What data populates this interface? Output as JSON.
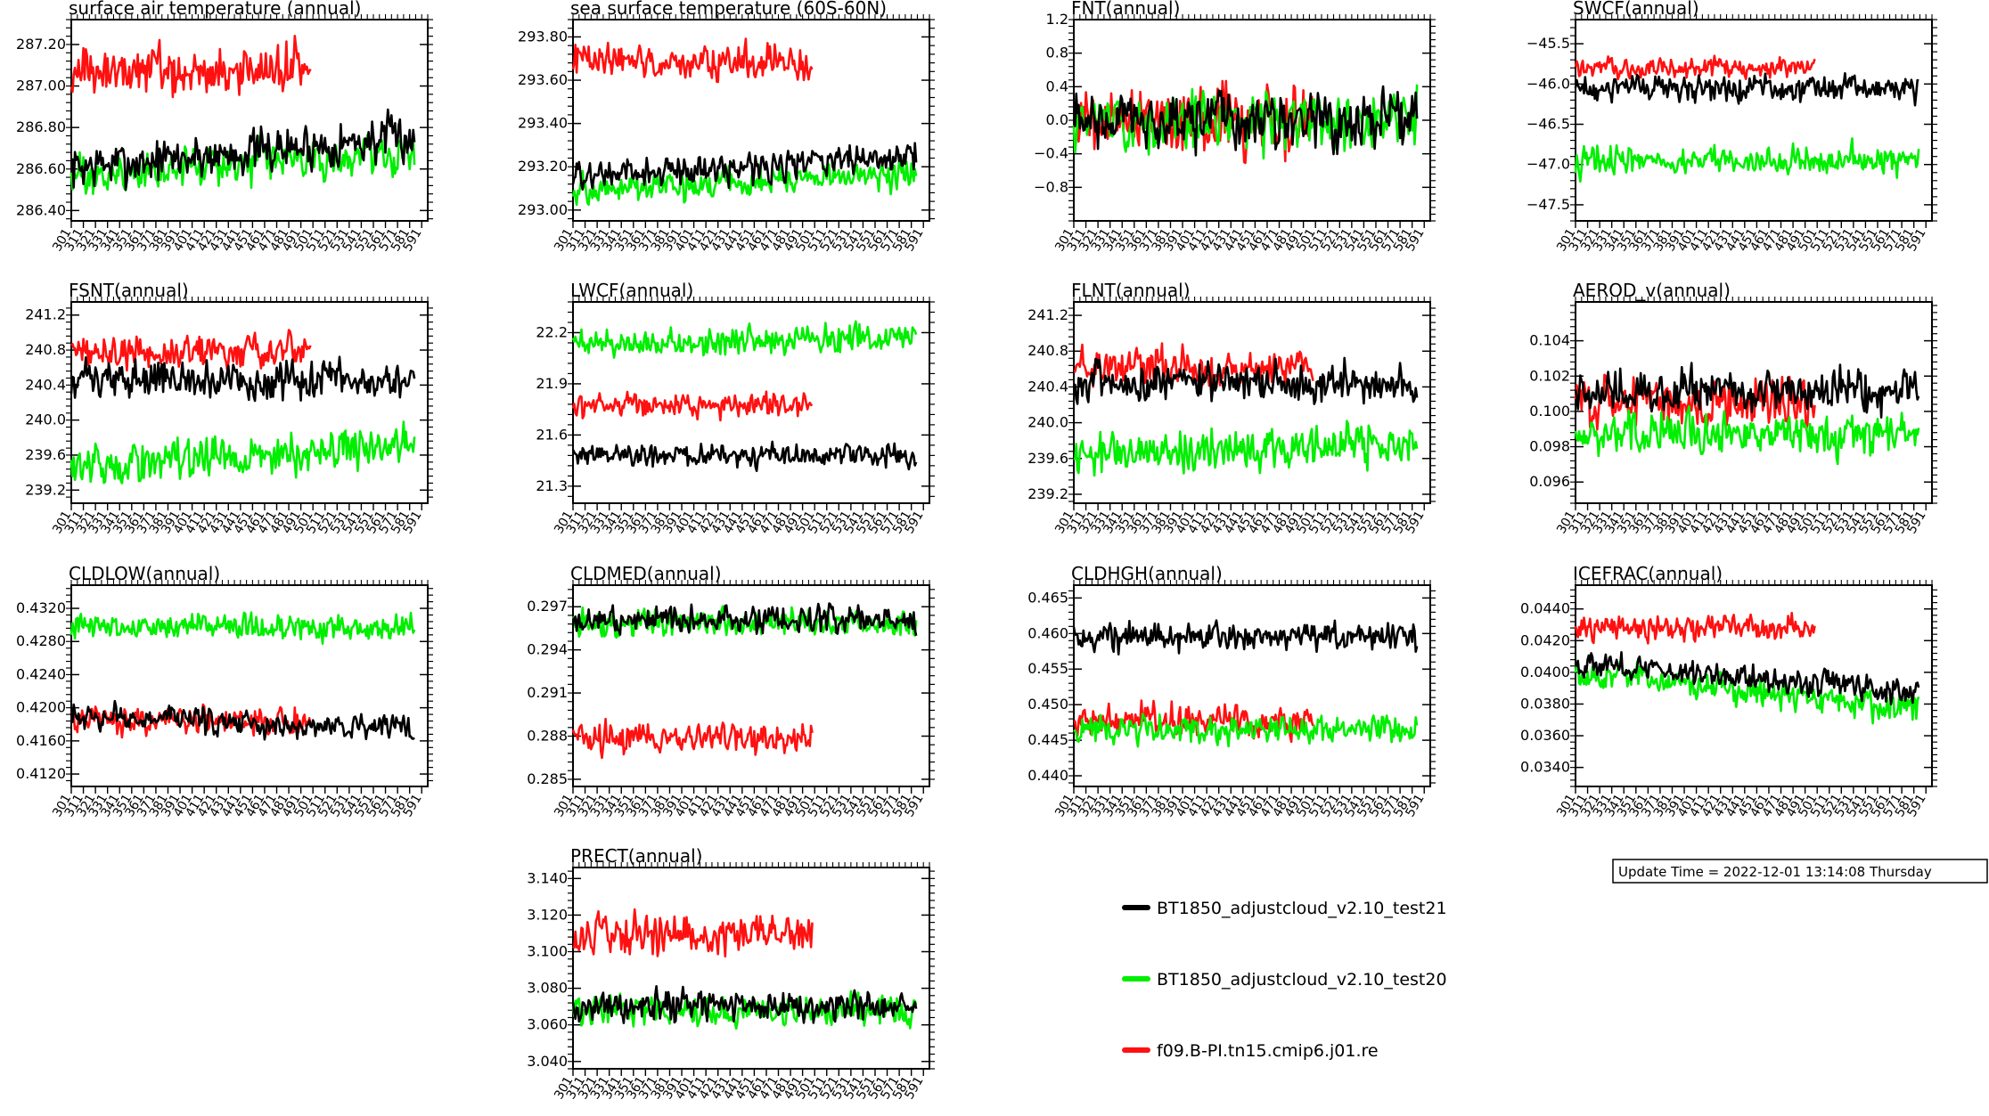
{
  "colors": {
    "test21": "#000000",
    "test20": "#00ee00",
    "ref": "#ff1111"
  },
  "update_time": "Update Time = 2022-12-01 13:14:08 Thursday",
  "legend": [
    {
      "label": "BT1850_adjustcloud_v2.10_test21",
      "color": "#000000"
    },
    {
      "label": "BT1850_adjustcloud_v2.10_test20",
      "color": "#00ee00"
    },
    {
      "label": "f09.B-PI.tn15.cmip6.j01.re",
      "color": "#ff1111"
    }
  ],
  "x_axis": {
    "xlim": [
      301,
      596
    ],
    "tick_labels": [
      "301",
      "311",
      "321",
      "331",
      "341",
      "351",
      "361",
      "371",
      "381",
      "391",
      "401",
      "411",
      "421",
      "431",
      "441",
      "451",
      "461",
      "471",
      "481",
      "491",
      "501",
      "511",
      "521",
      "531",
      "541",
      "551",
      "561",
      "571",
      "581",
      "591"
    ]
  },
  "chart_data": [
    {
      "type": "line",
      "title": "surface air temperature (annual)",
      "ylim": [
        286.35,
        287.32
      ],
      "yticks": [
        "286.40",
        "286.60",
        "286.80",
        "287.00",
        "287.20"
      ],
      "series": [
        {
          "name": "BT1850_adjustcloud_v2.10_test21",
          "mean": 286.68,
          "amp": 0.08,
          "trend": 0.15,
          "x_end": 585
        },
        {
          "name": "BT1850_adjustcloud_v2.10_test20",
          "mean": 286.62,
          "amp": 0.07,
          "trend": 0.13,
          "x_end": 585
        },
        {
          "name": "f09.B-PI.tn15.cmip6.j01.re",
          "mean": 287.07,
          "amp": 0.09,
          "trend": 0.0,
          "x_end": 499
        }
      ]
    },
    {
      "type": "line",
      "title": "sea surface temperature (60S-60N)",
      "ylim": [
        292.95,
        293.88
      ],
      "yticks": [
        "293.00",
        "293.20",
        "293.40",
        "293.60",
        "293.80"
      ],
      "series": [
        {
          "name": "BT1850_adjustcloud_v2.10_test21",
          "mean": 293.2,
          "amp": 0.05,
          "trend": 0.1,
          "x_end": 585
        },
        {
          "name": "BT1850_adjustcloud_v2.10_test20",
          "mean": 293.13,
          "amp": 0.05,
          "trend": 0.08,
          "x_end": 585
        },
        {
          "name": "f09.B-PI.tn15.cmip6.j01.re",
          "mean": 293.68,
          "amp": 0.06,
          "trend": 0.0,
          "x_end": 499
        }
      ]
    },
    {
      "type": "line",
      "title": "FNT(annual)",
      "ylim": [
        -1.2,
        1.2
      ],
      "yticks": [
        "−0.8",
        "−0.4",
        "0.0",
        "0.4",
        "0.8",
        "1.2"
      ],
      "series": [
        {
          "name": "BT1850_adjustcloud_v2.10_test21",
          "mean": 0.0,
          "amp": 0.25,
          "trend": 0.0,
          "x_end": 585
        },
        {
          "name": "BT1850_adjustcloud_v2.10_test20",
          "mean": 0.0,
          "amp": 0.25,
          "trend": 0.0,
          "x_end": 585
        },
        {
          "name": "f09.B-PI.tn15.cmip6.j01.re",
          "mean": 0.0,
          "amp": 0.3,
          "trend": 0.0,
          "x_end": 499
        }
      ]
    },
    {
      "type": "line",
      "title": "SWCF(annual)",
      "ylim": [
        -47.7,
        -45.2
      ],
      "yticks": [
        "−47.5",
        "−47.0",
        "−46.5",
        "−46.0",
        "−45.5"
      ],
      "series": [
        {
          "name": "BT1850_adjustcloud_v2.10_test21",
          "mean": -46.05,
          "amp": 0.12,
          "trend": 0.0,
          "x_end": 585
        },
        {
          "name": "BT1850_adjustcloud_v2.10_test20",
          "mean": -46.95,
          "amp": 0.13,
          "trend": 0.0,
          "x_end": 585
        },
        {
          "name": "f09.B-PI.tn15.cmip6.j01.re",
          "mean": -45.8,
          "amp": 0.1,
          "trend": 0.0,
          "x_end": 499
        }
      ]
    },
    {
      "type": "line",
      "title": "FSNT(annual)",
      "ylim": [
        239.05,
        241.35
      ],
      "yticks": [
        "239.2",
        "239.6",
        "240.0",
        "240.4",
        "240.8",
        "241.2"
      ],
      "series": [
        {
          "name": "BT1850_adjustcloud_v2.10_test21",
          "mean": 240.45,
          "amp": 0.16,
          "trend": 0.0,
          "x_end": 585
        },
        {
          "name": "BT1850_adjustcloud_v2.10_test20",
          "mean": 239.6,
          "amp": 0.17,
          "trend": 0.25,
          "x_end": 585
        },
        {
          "name": "f09.B-PI.tn15.cmip6.j01.re",
          "mean": 240.78,
          "amp": 0.15,
          "trend": 0.0,
          "x_end": 499
        }
      ]
    },
    {
      "type": "line",
      "title": "LWCF(annual)",
      "ylim": [
        21.2,
        22.38
      ],
      "yticks": [
        "21.3",
        "21.6",
        "21.9",
        "22.2"
      ],
      "series": [
        {
          "name": "BT1850_adjustcloud_v2.10_test21",
          "mean": 21.48,
          "amp": 0.05,
          "trend": 0.0,
          "x_end": 585
        },
        {
          "name": "BT1850_adjustcloud_v2.10_test20",
          "mean": 22.15,
          "amp": 0.06,
          "trend": 0.05,
          "x_end": 585
        },
        {
          "name": "f09.B-PI.tn15.cmip6.j01.re",
          "mean": 21.78,
          "amp": 0.05,
          "trend": 0.0,
          "x_end": 499
        }
      ]
    },
    {
      "type": "line",
      "title": "FLNT(annual)",
      "ylim": [
        239.1,
        241.35
      ],
      "yticks": [
        "239.2",
        "239.6",
        "240.0",
        "240.4",
        "240.8",
        "241.2"
      ],
      "series": [
        {
          "name": "BT1850_adjustcloud_v2.10_test21",
          "mean": 240.45,
          "amp": 0.16,
          "trend": 0.0,
          "x_end": 585
        },
        {
          "name": "BT1850_adjustcloud_v2.10_test20",
          "mean": 239.7,
          "amp": 0.17,
          "trend": 0.15,
          "x_end": 585
        },
        {
          "name": "f09.B-PI.tn15.cmip6.j01.re",
          "mean": 240.6,
          "amp": 0.17,
          "trend": 0.0,
          "x_end": 499
        }
      ]
    },
    {
      "type": "line",
      "title": "AEROD_v(annual)",
      "ylim": [
        0.0948,
        0.1062
      ],
      "yticks": [
        "0.096",
        "0.098",
        "0.100",
        "0.102",
        "0.104"
      ],
      "series": [
        {
          "name": "BT1850_adjustcloud_v2.10_test21",
          "mean": 0.1012,
          "amp": 0.0009,
          "trend": 0.0,
          "x_end": 585
        },
        {
          "name": "BT1850_adjustcloud_v2.10_test20",
          "mean": 0.0988,
          "amp": 0.0009,
          "trend": 0.0,
          "x_end": 585
        },
        {
          "name": "f09.B-PI.tn15.cmip6.j01.re",
          "mean": 0.1005,
          "amp": 0.0011,
          "trend": 0.0,
          "x_end": 499
        }
      ]
    },
    {
      "type": "line",
      "title": "CLDLOW(annual)",
      "ylim": [
        0.4105,
        0.4348
      ],
      "yticks": [
        "0.4120",
        "0.4160",
        "0.4200",
        "0.4240",
        "0.4280",
        "0.4320"
      ],
      "series": [
        {
          "name": "BT1850_adjustcloud_v2.10_test21",
          "mean": 0.4182,
          "amp": 0.0011,
          "trend": -0.0015,
          "x_end": 585
        },
        {
          "name": "BT1850_adjustcloud_v2.10_test20",
          "mean": 0.4298,
          "amp": 0.0012,
          "trend": 0.0,
          "x_end": 585
        },
        {
          "name": "f09.B-PI.tn15.cmip6.j01.re",
          "mean": 0.4185,
          "amp": 0.0012,
          "trend": 0.0,
          "x_end": 499
        }
      ]
    },
    {
      "type": "line",
      "title": "CLDMED(annual)",
      "ylim": [
        0.2845,
        0.2985
      ],
      "yticks": [
        "0.285",
        "0.288",
        "0.291",
        "0.294",
        "0.297"
      ],
      "series": [
        {
          "name": "BT1850_adjustcloud_v2.10_test21",
          "mean": 0.2961,
          "amp": 0.0007,
          "trend": 0.0,
          "x_end": 585
        },
        {
          "name": "BT1850_adjustcloud_v2.10_test20",
          "mean": 0.2958,
          "amp": 0.0007,
          "trend": 0.0,
          "x_end": 585
        },
        {
          "name": "f09.B-PI.tn15.cmip6.j01.re",
          "mean": 0.2878,
          "amp": 0.0008,
          "trend": 0.0,
          "x_end": 499
        }
      ]
    },
    {
      "type": "line",
      "title": "CLDHGH(annual)",
      "ylim": [
        0.4385,
        0.4668
      ],
      "yticks": [
        "0.440",
        "0.445",
        "0.450",
        "0.455",
        "0.460",
        "0.465"
      ],
      "series": [
        {
          "name": "BT1850_adjustcloud_v2.10_test21",
          "mean": 0.4595,
          "amp": 0.0014,
          "trend": 0.0,
          "x_end": 585
        },
        {
          "name": "BT1850_adjustcloud_v2.10_test20",
          "mean": 0.4465,
          "amp": 0.0014,
          "trend": 0.0,
          "x_end": 585
        },
        {
          "name": "f09.B-PI.tn15.cmip6.j01.re",
          "mean": 0.4478,
          "amp": 0.0018,
          "trend": 0.0,
          "x_end": 499
        }
      ]
    },
    {
      "type": "line",
      "title": "ICEFRAC(annual)",
      "ylim": [
        0.0328,
        0.0455
      ],
      "yticks": [
        "0.0340",
        "0.0360",
        "0.0380",
        "0.0400",
        "0.0420",
        "0.0440"
      ],
      "series": [
        {
          "name": "BT1850_adjustcloud_v2.10_test21",
          "mean": 0.0397,
          "amp": 0.0006,
          "trend": -0.0018,
          "x_end": 585
        },
        {
          "name": "BT1850_adjustcloud_v2.10_test20",
          "mean": 0.0388,
          "amp": 0.0007,
          "trend": -0.0022,
          "x_end": 585
        },
        {
          "name": "f09.B-PI.tn15.cmip6.j01.re",
          "mean": 0.0428,
          "amp": 0.0006,
          "trend": 0.0,
          "x_end": 499
        }
      ]
    },
    {
      "type": "line",
      "title": "PRECT(annual)",
      "ylim": [
        3.036,
        3.146
      ],
      "yticks": [
        "3.040",
        "3.060",
        "3.080",
        "3.100",
        "3.120",
        "3.140"
      ],
      "series": [
        {
          "name": "BT1850_adjustcloud_v2.10_test21",
          "mean": 3.07,
          "amp": 0.006,
          "trend": 0.0,
          "x_end": 585
        },
        {
          "name": "BT1850_adjustcloud_v2.10_test20",
          "mean": 3.068,
          "amp": 0.006,
          "trend": 0.0,
          "x_end": 585
        },
        {
          "name": "f09.B-PI.tn15.cmip6.j01.re",
          "mean": 3.109,
          "amp": 0.008,
          "trend": 0.0,
          "x_end": 499
        }
      ]
    }
  ]
}
